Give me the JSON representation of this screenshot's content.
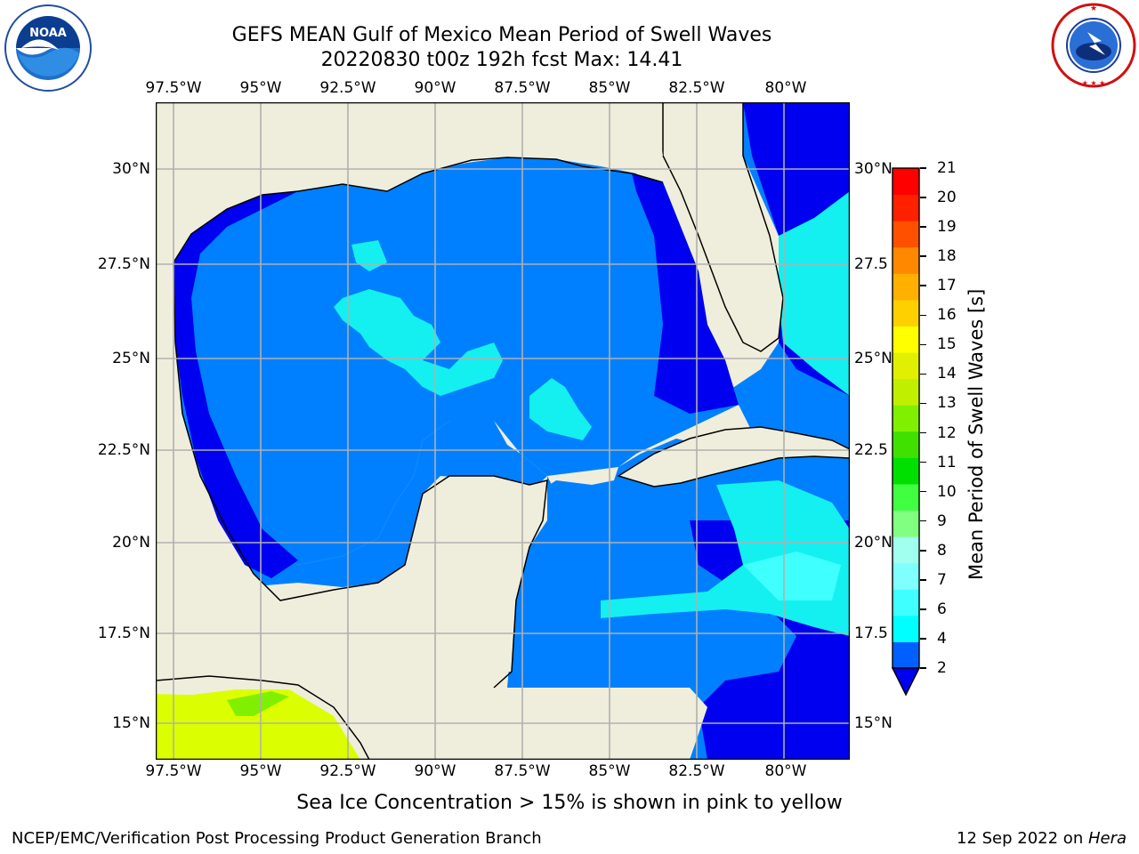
{
  "titles": {
    "line1": "GEFS MEAN Gulf of Mexico Mean Period of Swell Waves",
    "line2": "20220830 t00z 192h fcst   Max: 14.41"
  },
  "map": {
    "lon_labels": [
      "97.5°W",
      "95°W",
      "92.5°W",
      "90°W",
      "87.5°W",
      "85°W",
      "82.5°W",
      "80°W"
    ],
    "lat_labels_left": [
      "30°N",
      "27.5°N",
      "25°N",
      "22.5°N",
      "20°N",
      "17.5°N",
      "15°N"
    ],
    "lat_labels_right": [
      "30°N",
      "27.5",
      "25°N",
      "22.5",
      "20°N",
      "17.5",
      "15°N"
    ],
    "colors": {
      "land": "#efeedc",
      "ocean_main": "#0080ff",
      "ocean_dark": "#0000f0",
      "ocean_light": "#14f0f0",
      "ocean_pale": "#40ffff",
      "high_period_yellow": "#dcff00",
      "high_period_green": "#80f000",
      "gridlines": "#b0b0b0"
    }
  },
  "colorbar": {
    "label": "Mean Period of Swell Waves [s]",
    "ticks": [
      "21",
      "20",
      "19",
      "18",
      "17",
      "16",
      "15",
      "14",
      "13",
      "12",
      "11",
      "10",
      "9",
      "8",
      "7",
      "6",
      "4",
      "2"
    ],
    "colors": [
      "#0060ff",
      "#00ffff",
      "#40ffff",
      "#80ffff",
      "#a0ffee",
      "#80ff80",
      "#40ff40",
      "#00e000",
      "#40e000",
      "#80f000",
      "#c0f000",
      "#e0f000",
      "#ffff00",
      "#ffd000",
      "#ffb000",
      "#ff8800",
      "#ff5000",
      "#ff2000",
      "#ff0000"
    ]
  },
  "logos": {
    "noaa_text": "NOAA",
    "nws_text": "NATIONAL WEATHER SERVICE"
  },
  "footer": {
    "note": "Sea Ice Concentration > 15% is shown in pink to yellow",
    "left": "NCEP/EMC/Verification Post Processing Product Generation Branch",
    "right_date": "12 Sep 2022 on ",
    "right_host": "Hera"
  }
}
